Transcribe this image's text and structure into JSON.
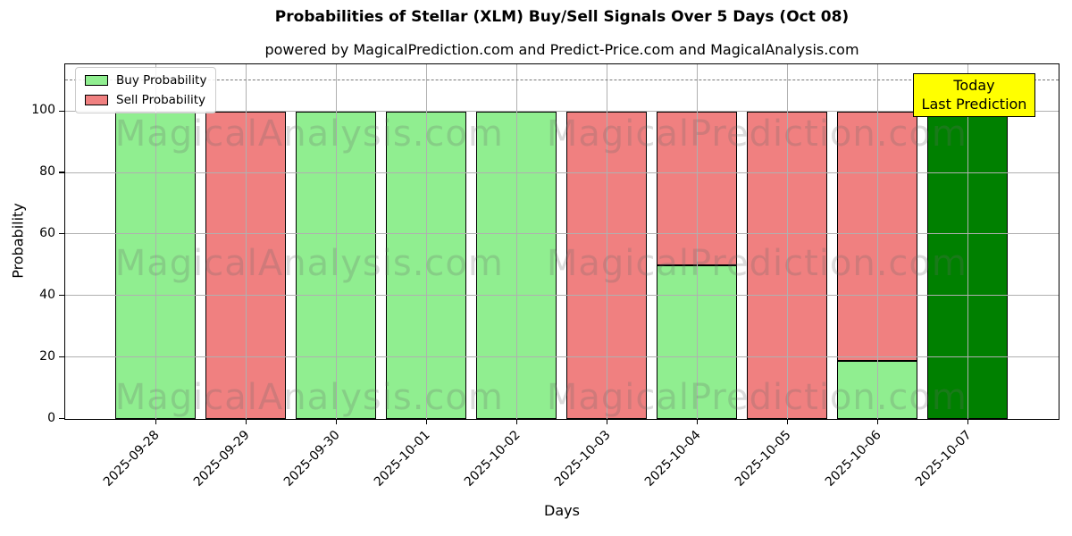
{
  "header": {
    "title": "Probabilities of Stellar (XLM) Buy/Sell Signals Over 5 Days (Oct 08)",
    "subtitle": "powered by MagicalPrediction.com and Predict-Price.com and MagicalAnalysis.com"
  },
  "axes": {
    "x_label": "Days",
    "y_label": "Probability",
    "y_ticks": [
      0,
      20,
      40,
      60,
      80,
      100
    ]
  },
  "legend": {
    "items": [
      {
        "label": "Buy Probability",
        "color": "#90EE90"
      },
      {
        "label": "Sell Probability",
        "color": "#F08080"
      }
    ]
  },
  "annotation": {
    "line1": "Today",
    "line2": "Last Prediction",
    "bg": "#FFFF00"
  },
  "watermarks": {
    "left": "MagicalAnalysis.com",
    "right": "MagicalPrediction.com"
  },
  "chart_data": {
    "type": "bar",
    "stacked": true,
    "title": "Probabilities of Stellar (XLM) Buy/Sell Signals Over 5 Days (Oct 08)",
    "xlabel": "Days",
    "ylabel": "Probability",
    "categories": [
      "2025-09-28",
      "2025-09-29",
      "2025-09-30",
      "2025-10-01",
      "2025-10-02",
      "2025-10-03",
      "2025-10-04",
      "2025-10-05",
      "2025-10-06",
      "2025-10-07"
    ],
    "series": [
      {
        "name": "Buy Probability",
        "color": "#90EE90",
        "values": [
          100,
          0,
          100,
          100,
          100,
          0,
          50,
          0,
          19,
          100
        ]
      },
      {
        "name": "Sell Probability",
        "color": "#F08080",
        "values": [
          0,
          100,
          0,
          0,
          0,
          100,
          50,
          100,
          81,
          0
        ]
      }
    ],
    "today": {
      "index": 9,
      "category": "2025-10-07",
      "color": "#008000",
      "label": "Today Last Prediction"
    },
    "dashed_line_y": 110,
    "ylim": [
      0,
      115
    ],
    "grid": true,
    "legend_position": "upper left",
    "bar_edge_color": "#000000",
    "grid_color": "#b0b0b0"
  }
}
